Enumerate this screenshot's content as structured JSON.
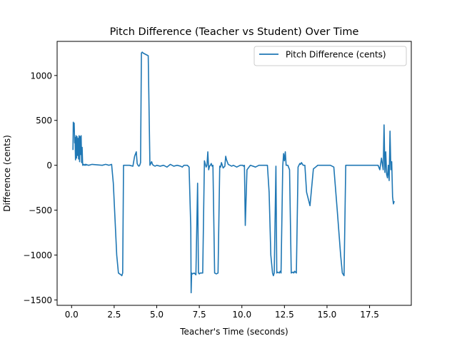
{
  "chart_data": {
    "type": "line",
    "title": "Pitch Difference (Teacher vs Student) Over Time",
    "xlabel": "Teacher's Time (seconds)",
    "ylabel": "Difference (cents)",
    "xlim": [
      -0.85,
      19.95
    ],
    "ylim": [
      -1560,
      1380
    ],
    "x_ticks": [
      0,
      2.5,
      5,
      7.5,
      10,
      12.5,
      15,
      17.5
    ],
    "x_tick_labels": [
      "0.0",
      "2.5",
      "5.0",
      "7.5",
      "10.0",
      "12.5",
      "15.0",
      "17.5"
    ],
    "y_ticks": [
      -1500,
      -1000,
      -500,
      0,
      500,
      1000
    ],
    "y_tick_labels": [
      "−1500",
      "−1000",
      "−500",
      "0",
      "500",
      "1000"
    ],
    "grid": false,
    "legend_position": "top-right",
    "series": [
      {
        "name": "Pitch Difference (cents)",
        "color": "#1f77b4",
        "x": [
          0.08,
          0.1,
          0.12,
          0.15,
          0.18,
          0.2,
          0.23,
          0.26,
          0.29,
          0.32,
          0.35,
          0.38,
          0.41,
          0.44,
          0.47,
          0.5,
          0.53,
          0.56,
          0.59,
          0.62,
          0.65,
          0.68,
          0.71,
          0.74,
          0.77,
          0.8,
          0.83,
          0.86,
          0.9,
          1.0,
          1.2,
          1.5,
          1.8,
          2.0,
          2.2,
          2.35,
          2.45,
          2.55,
          2.65,
          2.75,
          2.82,
          2.9,
          2.95,
          3.0,
          3.05,
          3.2,
          3.4,
          3.6,
          3.7,
          3.8,
          3.85,
          3.9,
          3.95,
          4.0,
          4.05,
          4.1,
          4.15,
          4.2,
          4.3,
          4.4,
          4.5,
          4.6,
          4.65,
          4.7,
          4.75,
          4.8,
          4.9,
          5.0,
          5.2,
          5.4,
          5.6,
          5.8,
          6.0,
          6.2,
          6.4,
          6.5,
          6.6,
          6.8,
          6.9,
          7.0,
          7.02,
          7.05,
          7.1,
          7.2,
          7.3,
          7.4,
          7.45,
          7.5,
          7.55,
          7.6,
          7.7,
          7.8,
          7.9,
          7.95,
          8.0,
          8.05,
          8.1,
          8.15,
          8.2,
          8.25,
          8.3,
          8.4,
          8.5,
          8.6,
          8.7,
          8.75,
          8.8,
          8.9,
          9.0,
          9.05,
          9.1,
          9.2,
          9.3,
          9.4,
          9.5,
          9.7,
          9.9,
          10.0,
          10.05,
          10.1,
          10.15,
          10.2,
          10.3,
          10.5,
          10.8,
          11.0,
          11.3,
          11.4,
          11.5,
          11.6,
          11.7,
          11.8,
          11.85,
          11.9,
          12.0,
          12.05,
          12.1,
          12.2,
          12.25,
          12.3,
          12.4,
          12.45,
          12.5,
          12.55,
          12.6,
          12.7,
          12.8,
          12.9,
          13.0,
          13.05,
          13.1,
          13.2,
          13.3,
          13.4,
          13.45,
          13.5,
          13.6,
          13.7,
          13.8,
          14.0,
          14.2,
          14.4,
          14.45,
          14.5,
          14.6,
          14.8,
          15.0,
          15.2,
          15.4,
          15.6,
          15.8,
          15.9,
          16.0,
          16.1,
          16.2,
          16.3,
          16.4,
          16.6,
          16.8,
          17.0,
          17.2,
          17.4,
          17.6,
          17.8,
          18.0,
          18.1,
          18.2,
          18.3,
          18.35,
          18.4,
          18.45,
          18.5,
          18.55,
          18.6,
          18.65,
          18.7,
          18.75,
          18.8,
          18.85,
          18.9,
          18.95
        ],
        "y": [
          170,
          480,
          380,
          470,
          250,
          310,
          60,
          330,
          80,
          320,
          110,
          300,
          70,
          330,
          40,
          320,
          120,
          330,
          30,
          200,
          0,
          10,
          10,
          0,
          5,
          10,
          0,
          10,
          5,
          0,
          10,
          5,
          0,
          10,
          0,
          10,
          -200,
          -600,
          -1000,
          -1200,
          -1210,
          -1220,
          -1230,
          -1200,
          0,
          0,
          0,
          -10,
          100,
          150,
          20,
          0,
          -10,
          0,
          30,
          1250,
          1260,
          1250,
          1240,
          1230,
          1220,
          0,
          20,
          40,
          10,
          0,
          -10,
          0,
          -10,
          0,
          -20,
          10,
          -10,
          0,
          -10,
          -20,
          0,
          0,
          -20,
          -700,
          -1420,
          -1200,
          -1210,
          -1200,
          -1220,
          -200,
          -1200,
          -1210,
          -1200,
          -1200,
          -1200,
          50,
          -20,
          0,
          150,
          -50,
          -10,
          0,
          20,
          -10,
          0,
          -1200,
          -1210,
          -1200,
          -10,
          -20,
          30,
          -30,
          -10,
          100,
          60,
          10,
          0,
          -10,
          0,
          -20,
          0,
          0,
          0,
          -10,
          0,
          -670,
          -50,
          0,
          -20,
          0,
          0,
          0,
          0,
          -300,
          -1000,
          -1200,
          -1230,
          -1200,
          -10,
          -1200,
          -1190,
          -1200,
          -1180,
          -1200,
          -10,
          130,
          50,
          150,
          0,
          0,
          -50,
          -1200,
          -1190,
          -1200,
          -1180,
          -1200,
          -20,
          20,
          10,
          30,
          0,
          0,
          -300,
          -450,
          -40,
          -10,
          0,
          0,
          0,
          0,
          0,
          0,
          -20,
          -500,
          -1000,
          -1200,
          -1230,
          0,
          0,
          0,
          0,
          0,
          0,
          0,
          0,
          0,
          0,
          0,
          0,
          -50,
          80,
          -50,
          450,
          -80,
          150,
          -100,
          -140,
          0,
          -170,
          380,
          -50,
          40,
          -350,
          -430,
          -400
        ]
      }
    ]
  }
}
